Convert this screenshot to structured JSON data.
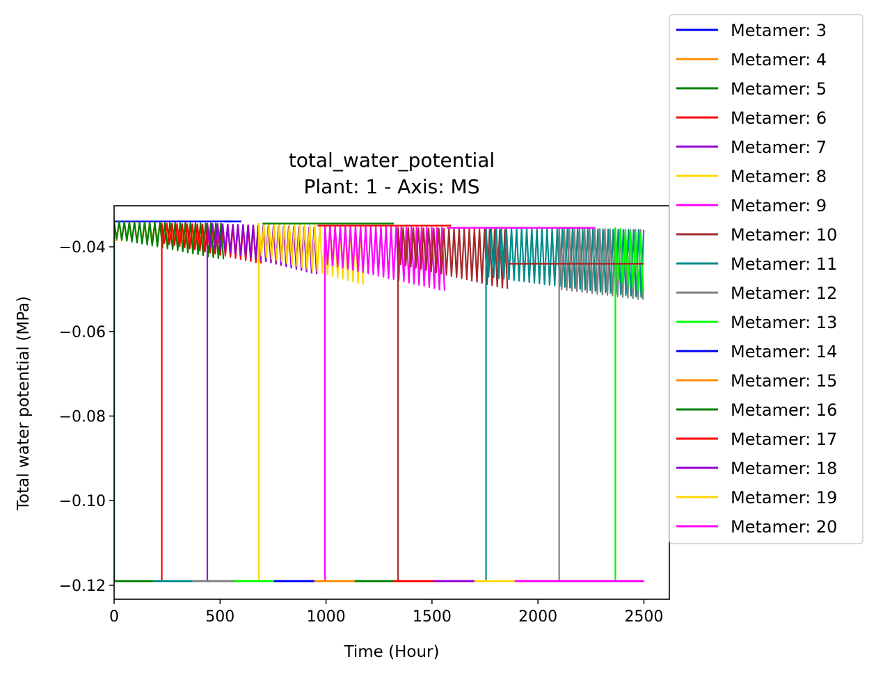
{
  "chart_data": {
    "type": "line",
    "title": "total_water_potential",
    "subtitle": "Plant: 1 - Axis: MS",
    "xlabel": "Time (Hour)",
    "ylabel": "Total water potential (MPa)",
    "xlim": [
      0,
      2620
    ],
    "ylim": [
      -0.1233,
      -0.0303
    ],
    "xticks": [
      0,
      500,
      1000,
      1500,
      2000,
      2500
    ],
    "xtick_labels": [
      "0",
      "500",
      "1000",
      "1500",
      "2000",
      "2500"
    ],
    "yticks": [
      -0.12,
      -0.1,
      -0.08,
      -0.06,
      -0.04
    ],
    "ytick_labels": [
      "−0.12",
      "−0.10",
      "−0.08",
      "−0.06",
      "−0.04"
    ],
    "grid": false,
    "legend_position": "outside-right",
    "oscillation_period_hours": 24,
    "series": [
      {
        "name": "Metamer: 3",
        "color": "#0000ff",
        "start": 0,
        "start_value": -0.119,
        "end": 600,
        "upper": [
          -0.034,
          -0.034
        ],
        "lower": [
          -0.034,
          -0.034
        ],
        "baseline": {
          "from": 0,
          "to": 0,
          "value": -0.119
        }
      },
      {
        "name": "Metamer: 4",
        "color": "#ff8c00",
        "start": 0,
        "start_value": -0.119,
        "end": 520,
        "upper": [
          -0.034,
          -0.035
        ],
        "lower": [
          -0.0385,
          -0.039
        ],
        "baseline": {
          "from": 0,
          "to": 0,
          "value": -0.119
        }
      },
      {
        "name": "Metamer: 5",
        "color": "#008000",
        "start": 0,
        "start_value": -0.119,
        "end": 520,
        "upper": [
          -0.034,
          -0.0345
        ],
        "lower": [
          -0.038,
          -0.043
        ],
        "baseline": {
          "from": 0,
          "to": 185,
          "value": -0.119
        }
      },
      {
        "name": "Metamer: 6",
        "color": "#ff0000",
        "start": 225,
        "start_value": -0.119,
        "end": 700,
        "upper": [
          -0.0345,
          -0.035
        ],
        "lower": [
          -0.039,
          -0.044
        ],
        "baseline": {
          "from": 0,
          "to": 0,
          "value": -0.119
        }
      },
      {
        "name": "Metamer: 7",
        "color": "#9400d3",
        "start": 440,
        "start_value": -0.119,
        "end": 960,
        "upper": [
          -0.0345,
          -0.0355
        ],
        "lower": [
          -0.04,
          -0.0465
        ],
        "baseline": {
          "from": 0,
          "to": 0,
          "value": -0.119
        }
      },
      {
        "name": "Metamer: 8",
        "color": "#ffd700",
        "start": 683,
        "start_value": -0.119,
        "end": 1180,
        "upper": [
          -0.0345,
          -0.0355
        ],
        "lower": [
          -0.042,
          -0.049
        ],
        "baseline": {
          "from": 0,
          "to": 0,
          "value": -0.119
        }
      },
      {
        "name": "Metamer: 9",
        "color": "#ff00ff",
        "start": 995,
        "start_value": -0.119,
        "end": 1570,
        "upper": [
          -0.035,
          -0.0355
        ],
        "lower": [
          -0.044,
          -0.0505
        ],
        "baseline": {
          "from": 0,
          "to": 0,
          "value": -0.119
        }
      },
      {
        "name": "Metamer: 10",
        "color": "#a52a2a",
        "start": 1340,
        "start_value": -0.119,
        "end": 1860,
        "upper": [
          -0.0355,
          -0.036
        ],
        "lower": [
          -0.044,
          -0.05
        ],
        "baseline": {
          "from": 0,
          "to": 0,
          "value": -0.119
        }
      },
      {
        "name": "Metamer: 11",
        "color": "#008b8b",
        "start": 1755,
        "start_value": -0.119,
        "end": 2500,
        "upper": [
          -0.0355,
          -0.036
        ],
        "lower": [
          -0.047,
          -0.052
        ],
        "baseline": {
          "from": 185,
          "to": 370,
          "value": -0.119
        }
      },
      {
        "name": "Metamer: 12",
        "color": "#808080",
        "start": 2100,
        "start_value": -0.119,
        "end": 2500,
        "upper": [
          -0.0355,
          -0.036
        ],
        "lower": [
          -0.05,
          -0.0525
        ],
        "baseline": {
          "from": 370,
          "to": 565,
          "value": -0.119
        }
      },
      {
        "name": "Metamer: 13",
        "color": "#00ff00",
        "start": 2365,
        "start_value": -0.119,
        "end": 2500,
        "upper": [
          -0.0355,
          -0.037
        ],
        "lower": [
          -0.0475,
          -0.051
        ],
        "baseline": {
          "from": 565,
          "to": 755,
          "value": -0.119
        }
      },
      {
        "name": "Metamer: 14",
        "color": "#0000ff",
        "start": 0,
        "start_value": -0.119,
        "end": 0,
        "upper": [
          -0.119,
          -0.119
        ],
        "lower": [
          -0.119,
          -0.119
        ],
        "baseline": {
          "from": 755,
          "to": 945,
          "value": -0.119
        }
      },
      {
        "name": "Metamer: 15",
        "color": "#ff8c00",
        "start": 0,
        "start_value": -0.119,
        "end": 0,
        "upper": [
          -0.119,
          -0.119
        ],
        "lower": [
          -0.119,
          -0.119
        ],
        "baseline": {
          "from": 945,
          "to": 1135,
          "value": -0.119
        }
      },
      {
        "name": "Metamer: 16",
        "color": "#008000",
        "start": 0,
        "start_value": -0.119,
        "end": 0,
        "upper": [
          -0.119,
          -0.119
        ],
        "lower": [
          -0.119,
          -0.119
        ],
        "baseline": {
          "from": 1135,
          "to": 1320,
          "value": -0.119
        }
      },
      {
        "name": "Metamer: 17",
        "color": "#ff0000",
        "start": 0,
        "start_value": -0.119,
        "end": 0,
        "upper": [
          -0.119,
          -0.119
        ],
        "lower": [
          -0.119,
          -0.119
        ],
        "baseline": {
          "from": 1320,
          "to": 1510,
          "value": -0.119
        }
      },
      {
        "name": "Metamer: 18",
        "color": "#9400d3",
        "start": 0,
        "start_value": -0.119,
        "end": 0,
        "upper": [
          -0.119,
          -0.119
        ],
        "lower": [
          -0.119,
          -0.119
        ],
        "baseline": {
          "from": 1510,
          "to": 1700,
          "value": -0.119
        }
      },
      {
        "name": "Metamer: 19",
        "color": "#ffd700",
        "start": 0,
        "start_value": -0.119,
        "end": 0,
        "upper": [
          -0.119,
          -0.119
        ],
        "lower": [
          -0.119,
          -0.119
        ],
        "baseline": {
          "from": 1700,
          "to": 1890,
          "value": -0.119
        }
      },
      {
        "name": "Metamer: 20",
        "color": "#ff00ff",
        "start": 0,
        "start_value": -0.119,
        "end": 0,
        "upper": [
          -0.119,
          -0.119
        ],
        "lower": [
          -0.119,
          -0.119
        ],
        "baseline": {
          "from": 1890,
          "to": 2500,
          "value": -0.119
        }
      }
    ],
    "flat_segments": [
      {
        "series": "Metamer: 3",
        "from": 520,
        "to": 560,
        "value": -0.034
      },
      {
        "series": "Metamer: 5",
        "from": 700,
        "to": 1320,
        "value": -0.0345
      },
      {
        "series": "Metamer: 6",
        "from": 960,
        "to": 1590,
        "value": -0.035
      },
      {
        "series": "Metamer: 9",
        "from": 1570,
        "to": 2270,
        "value": -0.0355
      },
      {
        "series": "Metamer: 10",
        "from": 1860,
        "to": 2500,
        "value": -0.044
      }
    ]
  }
}
